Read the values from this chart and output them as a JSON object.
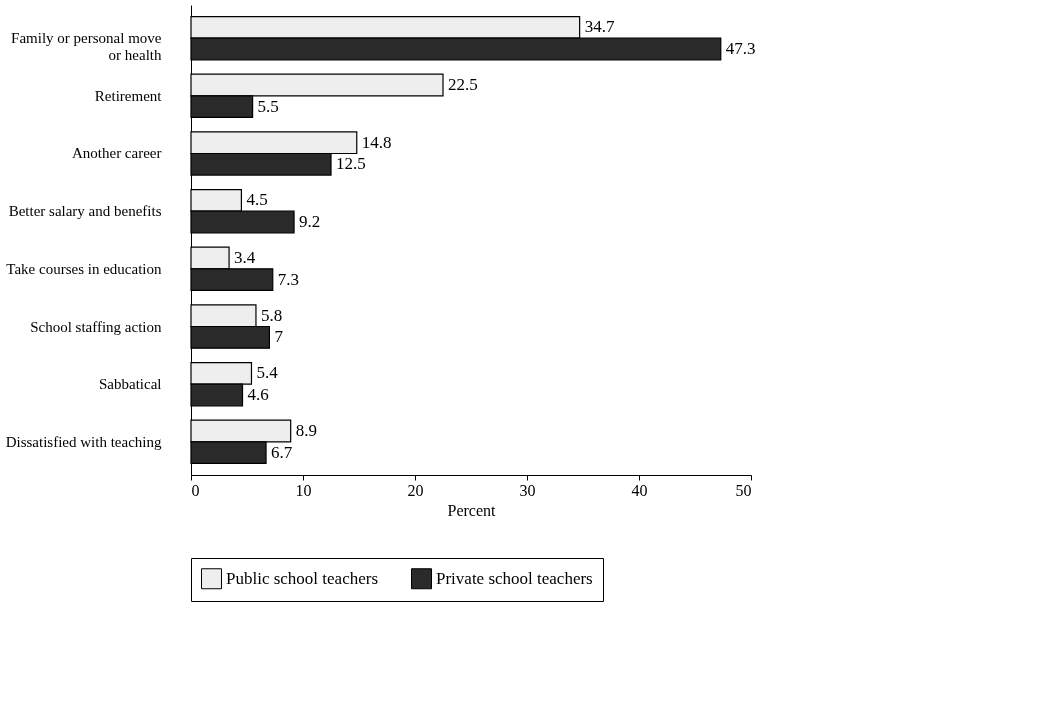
{
  "chart_data": {
    "type": "bar",
    "orientation": "horizontal",
    "xlabel": "Percent",
    "categories": [
      "Family or personal move\nor health",
      "Retirement",
      "Another career",
      "Better salary and benefits",
      "Take courses in education",
      "School staffing action",
      "Sabbatical",
      "Dissatisfied with teaching"
    ],
    "series": [
      {
        "name": "Public school teachers",
        "color": "#eeeeee",
        "values": [
          34.7,
          22.5,
          14.8,
          4.5,
          3.4,
          5.8,
          5.4,
          8.9
        ]
      },
      {
        "name": "Private school teachers",
        "color": "#2a2a2a",
        "values": [
          47.3,
          5.5,
          12.5,
          9.2,
          7.3,
          7,
          4.6,
          6.7
        ]
      }
    ],
    "xlim": [
      0,
      50
    ],
    "xticks": [
      0,
      10,
      20,
      30,
      40,
      50
    ],
    "data_labels": true,
    "grid": false,
    "legend": "bottom"
  }
}
